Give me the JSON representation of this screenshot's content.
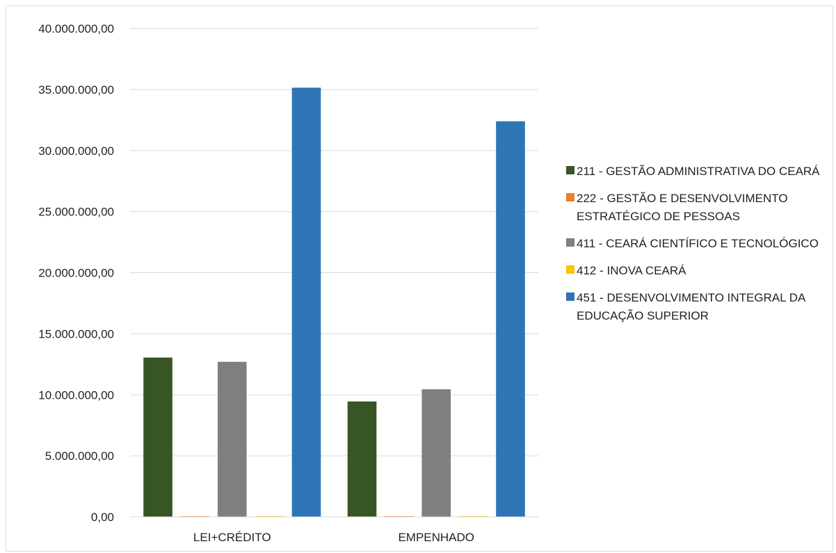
{
  "chart_data": {
    "type": "bar",
    "categories": [
      "LEI+CRÉDITO",
      "EMPENHADO"
    ],
    "series": [
      {
        "name": "211 - GESTÃO ADMINISTRATIVA DO CEARÁ",
        "color": "#375623",
        "values": [
          13050000,
          9450000
        ]
      },
      {
        "name": "222 - GESTÃO E DESENVOLVIMENTO ESTRATÉGICO DE PESSOAS",
        "color": "#ED7D31",
        "values": [
          0,
          0
        ]
      },
      {
        "name": "411 - CEARÁ CIENTÍFICO E TECNOLÓGICO",
        "color": "#7F7F7F",
        "values": [
          12700000,
          10450000
        ]
      },
      {
        "name": "412 - INOVA CEARÁ",
        "color": "#FFC000",
        "values": [
          0,
          0
        ]
      },
      {
        "name": "451 - DESENVOLVIMENTO INTEGRAL DA EDUCAÇÃO SUPERIOR",
        "color": "#2E75B6",
        "values": [
          35150000,
          32400000
        ]
      }
    ],
    "y_ticks": [
      "0,00",
      "5.000.000,00",
      "10.000.000,00",
      "15.000.000,00",
      "20.000.000,00",
      "25.000.000,00",
      "30.000.000,00",
      "35.000.000,00",
      "40.000.000,00"
    ],
    "ylim": [
      0,
      40000000
    ],
    "grid": true,
    "legend_position": "right"
  }
}
